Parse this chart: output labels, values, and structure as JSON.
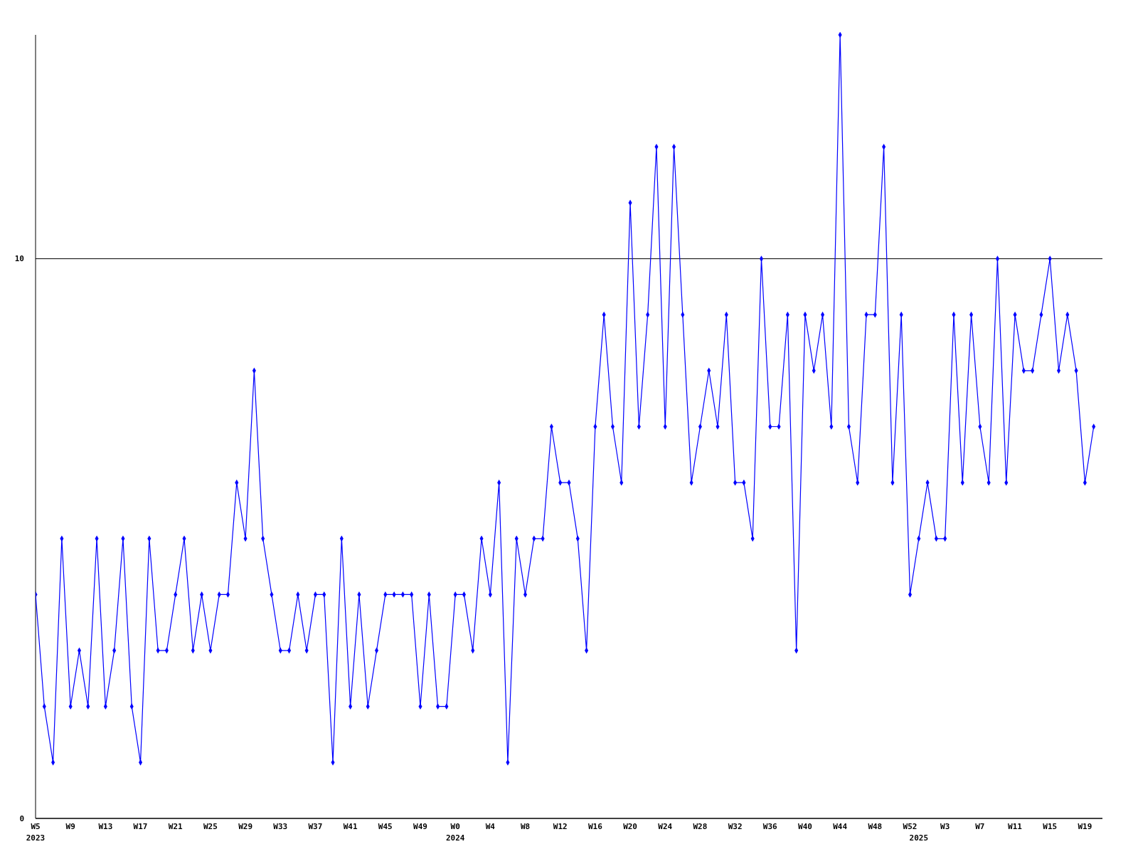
{
  "chart_data": {
    "type": "line",
    "categories": [
      "W5\n2023",
      null,
      null,
      null,
      "W9",
      null,
      null,
      null,
      "W13",
      null,
      null,
      null,
      "W17",
      null,
      null,
      null,
      "W21",
      null,
      null,
      null,
      "W25",
      null,
      null,
      null,
      "W29",
      null,
      null,
      null,
      "W33",
      null,
      null,
      null,
      "W37",
      null,
      null,
      null,
      "W41",
      null,
      null,
      null,
      "W45",
      null,
      null,
      null,
      "W49",
      null,
      null,
      null,
      "W0\n2024",
      null,
      null,
      null,
      "W4",
      null,
      null,
      null,
      "W8",
      null,
      null,
      null,
      "W12",
      null,
      null,
      null,
      "W16",
      null,
      null,
      null,
      "W20",
      null,
      null,
      null,
      "W24",
      null,
      null,
      null,
      "W28",
      null,
      null,
      null,
      "W32",
      null,
      null,
      null,
      "W36",
      null,
      null,
      null,
      "W40",
      null,
      null,
      null,
      "W44",
      null,
      null,
      null,
      "W48",
      null,
      null,
      null,
      "W52",
      "\n2025",
      null,
      null,
      "W3",
      null,
      null,
      null,
      "W7",
      null,
      null,
      null,
      "W11",
      null,
      null,
      null,
      "W15",
      null,
      null,
      null,
      "W19",
      null,
      null
    ],
    "series": [
      {
        "color": "#0000ff",
        "values": [
          4,
          2,
          1,
          5,
          2,
          3,
          2,
          5,
          2,
          3,
          5,
          2,
          1,
          5,
          3,
          3,
          4,
          5,
          3,
          4,
          3,
          4,
          4,
          6,
          5,
          8,
          5,
          4,
          3,
          3,
          4,
          3,
          4,
          4,
          1,
          5,
          2,
          4,
          2,
          3,
          4,
          4,
          4,
          4,
          2,
          4,
          2,
          2,
          4,
          4,
          3,
          5,
          4,
          6,
          1,
          5,
          4,
          5,
          5,
          7,
          6,
          6,
          5,
          3,
          7,
          9,
          7,
          6,
          11,
          7,
          9,
          12,
          7,
          12,
          9,
          6,
          7,
          8,
          7,
          9,
          6,
          6,
          5,
          10,
          7,
          7,
          9,
          3,
          9,
          8,
          9,
          7,
          14,
          7,
          6,
          9,
          9,
          12,
          6,
          9,
          4,
          5,
          6,
          5,
          5,
          9,
          6,
          9,
          7,
          6,
          10,
          6,
          9,
          8,
          8,
          9,
          10,
          8,
          9,
          8,
          6,
          7,
          null
        ]
      }
    ],
    "ylim": [
      0,
      14
    ],
    "yticks": [
      0,
      10
    ],
    "grid": "y",
    "marker": "diamond",
    "line_style": "solid"
  }
}
